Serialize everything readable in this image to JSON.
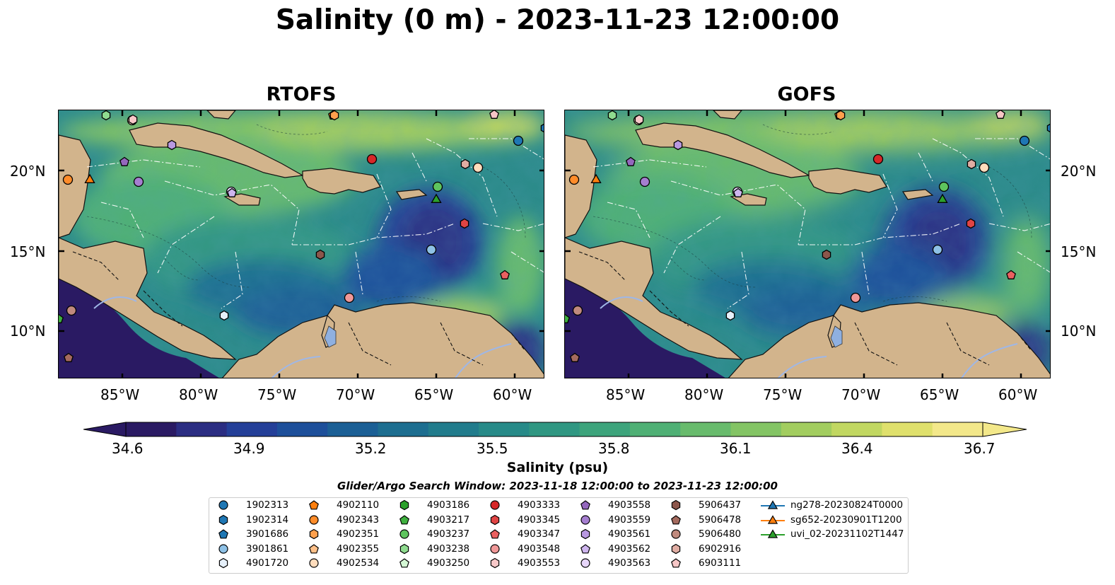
{
  "title": "Salinity (0 m) - 2023-11-23 12:00:00",
  "panels": [
    {
      "id": "rtofs",
      "title": "RTOFS"
    },
    {
      "id": "gofs",
      "title": "GOFS"
    }
  ],
  "lat_ticks": [
    "20°N",
    "15°N",
    "10°N"
  ],
  "lon_ticks": [
    "85°W",
    "80°W",
    "75°W",
    "70°W",
    "65°W",
    "60°W"
  ],
  "colorbar": {
    "label": "Salinity (psu)",
    "ticks": [
      "34.6",
      "34.9",
      "35.2",
      "35.5",
      "35.8",
      "36.1",
      "36.4",
      "36.7"
    ],
    "colors": [
      "#2a1a63",
      "#2b2d82",
      "#243f98",
      "#1d4f9a",
      "#1b5f95",
      "#1d6e90",
      "#217c8c",
      "#278a88",
      "#309782",
      "#3da47c",
      "#4fb075",
      "#68bb6c",
      "#83c464",
      "#a2cd5f",
      "#c1d761",
      "#dfe06c",
      "#f3e88a"
    ],
    "cmap": "haline"
  },
  "search_window": "Glider/Argo Search Window: 2023-11-18 12:00:00 to 2023-11-23 12:00:00",
  "land_color": "#d2b48c",
  "legend": [
    {
      "label": "1902313",
      "marker": "circle",
      "color": "#1f77b4"
    },
    {
      "label": "1902314",
      "marker": "hexagon",
      "color": "#1f77b4"
    },
    {
      "label": "3901686",
      "marker": "pentagon",
      "color": "#1f77b4"
    },
    {
      "label": "3901861",
      "marker": "circle",
      "color": "#8ec1e6"
    },
    {
      "label": "4901720",
      "marker": "hexagon",
      "color": "#e6f0fa"
    },
    {
      "label": "4902110",
      "marker": "pentagon",
      "color": "#ff7f0e"
    },
    {
      "label": "4902343",
      "marker": "circle",
      "color": "#ff8c2a"
    },
    {
      "label": "4902351",
      "marker": "hexagon",
      "color": "#ffa04d"
    },
    {
      "label": "4902355",
      "marker": "pentagon",
      "color": "#ffc089"
    },
    {
      "label": "4902534",
      "marker": "circle",
      "color": "#ffdcbc"
    },
    {
      "label": "4903186",
      "marker": "hexagon",
      "color": "#2ca02c"
    },
    {
      "label": "4903217",
      "marker": "pentagon",
      "color": "#3fb03f"
    },
    {
      "label": "4903237",
      "marker": "circle",
      "color": "#5ec45e"
    },
    {
      "label": "4903238",
      "marker": "hexagon",
      "color": "#8fdb8f"
    },
    {
      "label": "4903250",
      "marker": "pentagon",
      "color": "#d4f7d4"
    },
    {
      "label": "4903333",
      "marker": "circle",
      "color": "#d62728"
    },
    {
      "label": "4903345",
      "marker": "hexagon",
      "color": "#e04444"
    },
    {
      "label": "4903347",
      "marker": "pentagon",
      "color": "#ea6060"
    },
    {
      "label": "4903548",
      "marker": "circle",
      "color": "#f09898"
    },
    {
      "label": "4903553",
      "marker": "hexagon",
      "color": "#f8c8c8"
    },
    {
      "label": "4903558",
      "marker": "pentagon",
      "color": "#9467bd"
    },
    {
      "label": "4903559",
      "marker": "circle",
      "color": "#a57ed0"
    },
    {
      "label": "4903561",
      "marker": "hexagon",
      "color": "#b898e0"
    },
    {
      "label": "4903562",
      "marker": "pentagon",
      "color": "#ceb5ee"
    },
    {
      "label": "4903563",
      "marker": "circle",
      "color": "#e7d6fa"
    },
    {
      "label": "5906437",
      "marker": "hexagon",
      "color": "#8c564b"
    },
    {
      "label": "5906478",
      "marker": "pentagon",
      "color": "#a46a5e"
    },
    {
      "label": "5906480",
      "marker": "circle",
      "color": "#c08a7e"
    },
    {
      "label": "6902916",
      "marker": "hexagon",
      "color": "#e0ada3"
    },
    {
      "label": "6903111",
      "marker": "pentagon",
      "color": "#f7c6c6"
    },
    {
      "label": "ng278-20230824T0000",
      "marker": "triangle-line",
      "color": "#1f77b4"
    },
    {
      "label": "sg652-20230901T1200",
      "marker": "triangle-line",
      "color": "#ff7f0e"
    },
    {
      "label": "uvi_02-20231102T1447",
      "marker": "triangle-line",
      "color": "#2ca02c"
    }
  ]
}
